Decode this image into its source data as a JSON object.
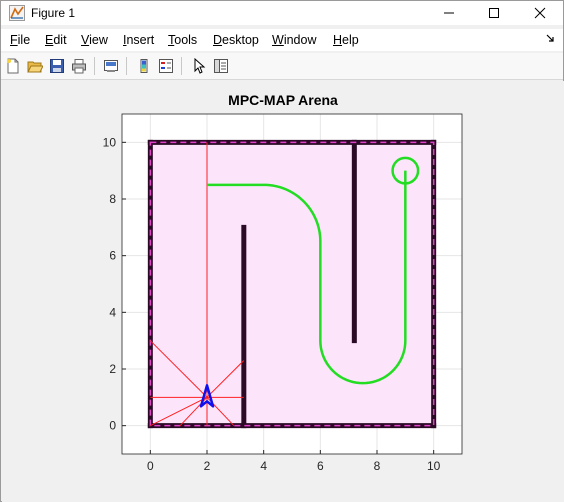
{
  "window": {
    "title": "Figure 1",
    "icon": "matlab-figure-icon",
    "controls": [
      "minimize-icon",
      "maximize-icon",
      "close-icon"
    ]
  },
  "menubar": {
    "items": [
      {
        "label": "File",
        "accel": "F"
      },
      {
        "label": "Edit",
        "accel": "E"
      },
      {
        "label": "View",
        "accel": "V"
      },
      {
        "label": "Insert",
        "accel": "I"
      },
      {
        "label": "Tools",
        "accel": "T"
      },
      {
        "label": "Desktop",
        "accel": "D"
      },
      {
        "label": "Window",
        "accel": "W"
      },
      {
        "label": "Help",
        "accel": "H"
      }
    ],
    "overflow_icon": "dock-arrow-icon"
  },
  "toolbar": {
    "buttons": [
      "new-figure-icon",
      "open-file-icon",
      "save-icon",
      "print-icon",
      "link-plot-icon",
      "colorbar-icon",
      "legend-icon",
      "pointer-icon",
      "property-inspector-icon"
    ]
  },
  "chart_data": {
    "type": "line",
    "title": "MPC-MAP Arena",
    "xlim": [
      -1,
      11
    ],
    "ylim": [
      -1,
      11
    ],
    "xticks": [
      0,
      2,
      4,
      6,
      8,
      10
    ],
    "yticks": [
      0,
      2,
      4,
      6,
      8,
      10
    ],
    "grid": true,
    "colors": {
      "arena_fill": "#fce4fb",
      "walls": "#2a0a24",
      "boundary_dash": "#e040c8",
      "path": "#22dd22",
      "sensors": "#ff2020",
      "robot": "#1010ee"
    },
    "arena": {
      "x": [
        0,
        10
      ],
      "y": [
        0,
        10
      ]
    },
    "walls": [
      {
        "x": [
          0,
          10
        ],
        "y": [
          10,
          10
        ]
      },
      {
        "x": [
          0,
          10
        ],
        "y": [
          0,
          0
        ]
      },
      {
        "x": [
          0,
          0
        ],
        "y": [
          0,
          10
        ]
      },
      {
        "x": [
          10,
          10
        ],
        "y": [
          0,
          10
        ]
      },
      {
        "x": [
          3.3,
          3.3
        ],
        "y": [
          0,
          7
        ]
      },
      {
        "x": [
          7.2,
          7.2
        ],
        "y": [
          3,
          10
        ]
      }
    ],
    "goal": {
      "x": 9,
      "y": 9,
      "r": 0.45
    },
    "path": {
      "segments": [
        {
          "kind": "line",
          "x": [
            2,
            4
          ],
          "y": [
            8.5,
            8.5
          ]
        },
        {
          "kind": "arc",
          "cx": 4,
          "cy": 6.5,
          "r": 2,
          "from_deg": 90,
          "to_deg": 0
        },
        {
          "kind": "line",
          "x": [
            6,
            6
          ],
          "y": [
            6.5,
            3
          ]
        },
        {
          "kind": "arc",
          "cx": 7.5,
          "cy": 3,
          "r": 1.5,
          "from_deg": 180,
          "to_deg": 360
        },
        {
          "kind": "line",
          "x": [
            9,
            9
          ],
          "y": [
            3,
            9
          ]
        }
      ]
    },
    "robot": {
      "x": 2,
      "y": 1
    },
    "sensor_rays_end": [
      [
        2,
        10
      ],
      [
        3.3,
        2.3
      ],
      [
        3.3,
        1
      ],
      [
        2.95,
        0
      ],
      [
        2,
        0
      ],
      [
        1.05,
        0
      ],
      [
        0,
        0
      ],
      [
        0,
        1
      ],
      [
        0,
        3
      ]
    ]
  }
}
